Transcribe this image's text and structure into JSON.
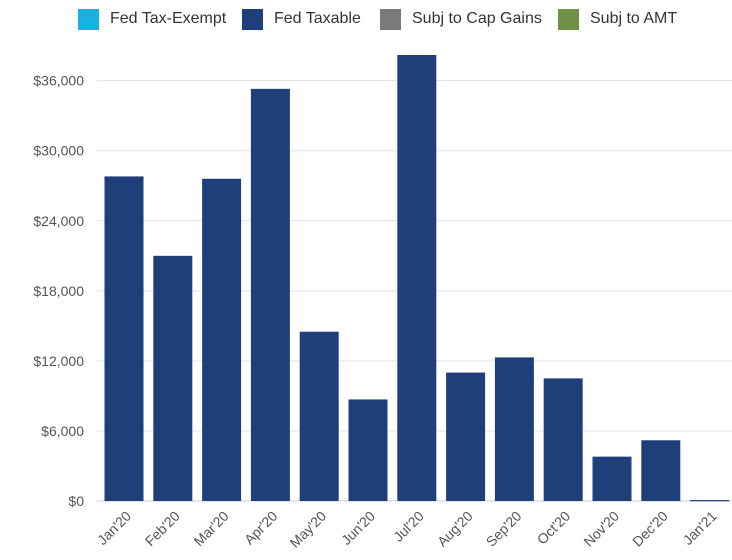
{
  "chart_data": {
    "type": "bar",
    "title": "",
    "xlabel": "",
    "ylabel": "",
    "categories": [
      "Jan'20",
      "Feb'20",
      "Mar'20",
      "Apr'20",
      "May'20",
      "Jun'20",
      "Jul'20",
      "Aug'20",
      "Sep'20",
      "Oct'20",
      "Nov'20",
      "Dec'20",
      "Jan'21"
    ],
    "series": [
      {
        "name": "Fed Tax-Exempt",
        "color": "#1ab0e0",
        "values": [
          0,
          0,
          0,
          0,
          0,
          0,
          0,
          0,
          0,
          0,
          0,
          0,
          0
        ]
      },
      {
        "name": "Fed Taxable",
        "color": "#1e3f7a",
        "values": [
          27800,
          21000,
          27600,
          35300,
          14500,
          8700,
          38200,
          11000,
          12300,
          10500,
          3800,
          5200,
          80
        ]
      },
      {
        "name": "Subj to Cap Gains",
        "color": "#7a7a7a",
        "values": [
          0,
          0,
          0,
          0,
          0,
          0,
          0,
          0,
          0,
          0,
          0,
          0,
          0
        ]
      },
      {
        "name": "Subj to AMT",
        "color": "#6f9145",
        "values": [
          0,
          0,
          0,
          0,
          0,
          0,
          0,
          0,
          0,
          0,
          0,
          0,
          0
        ]
      }
    ],
    "ylim": [
      0,
      38200
    ],
    "yticks": [
      0,
      6000,
      12000,
      18000,
      24000,
      30000,
      36000
    ],
    "ytick_labels": [
      "$0",
      "$6,000",
      "$12,000",
      "$18,000",
      "$24,000",
      "$30,000",
      "$36,000"
    ],
    "grid": true,
    "legend_position": "top"
  }
}
